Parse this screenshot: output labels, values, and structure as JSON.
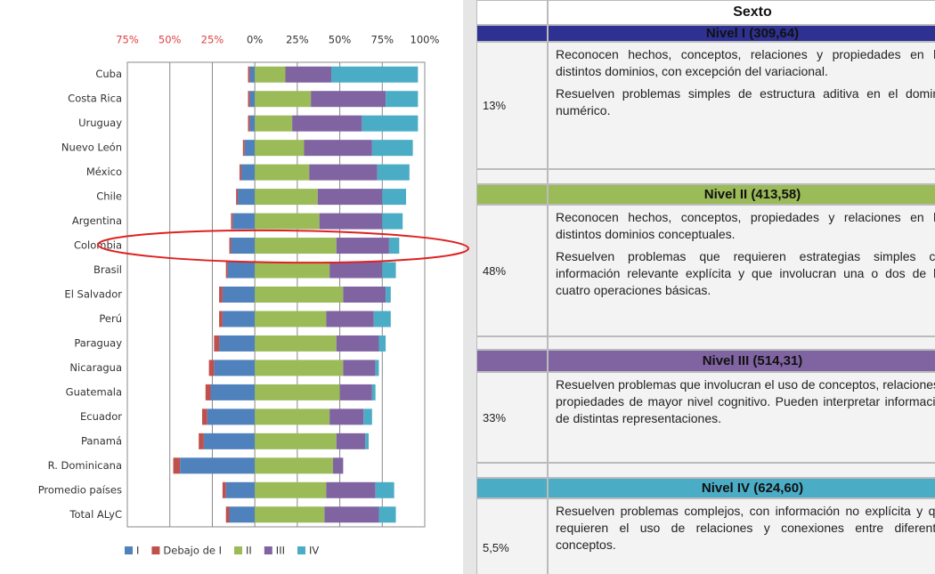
{
  "chart_data": {
    "type": "diverging_bar",
    "categories": [
      "Cuba",
      "Costa Rica",
      "Uruguay",
      "Nuevo León",
      "México",
      "Chile",
      "Argentina",
      "Colombia",
      "Brasil",
      "El Salvador",
      "Perú",
      "Paraguay",
      "Nicaragua",
      "Guatemala",
      "Ecuador",
      "Panamá",
      "R. Dominicana",
      "Promedio países",
      "Total ALyC"
    ],
    "series": [
      {
        "name": "I",
        "color": "#4f81bd",
        "values": [
          -3,
          -3,
          -3,
          -6,
          -8,
          -10,
          -13,
          -14,
          -16,
          -19,
          -19,
          -21,
          -24,
          -26,
          -28,
          -30,
          -44,
          -17,
          -15
        ]
      },
      {
        "name": "Debajo de I",
        "color": "#c0504d",
        "values": [
          -1,
          -1,
          -1,
          -1,
          -1,
          -1,
          -1,
          -1,
          -1,
          -2,
          -2,
          -3,
          -3,
          -3,
          -3,
          -3,
          -4,
          -2,
          -2
        ]
      },
      {
        "name": "II",
        "color": "#9bbb59",
        "values": [
          18,
          33,
          22,
          29,
          32,
          37,
          38,
          48,
          44,
          52,
          42,
          48,
          52,
          50,
          44,
          48,
          46,
          42,
          41
        ]
      },
      {
        "name": "III",
        "color": "#8064a2",
        "values": [
          27,
          44,
          41,
          40,
          40,
          38,
          37,
          31,
          31,
          25,
          28,
          25,
          19,
          19,
          20,
          17,
          6,
          29,
          32
        ]
      },
      {
        "name": "IV",
        "color": "#4bacc6",
        "values": [
          51,
          19,
          33,
          24,
          19,
          14,
          12,
          6,
          8,
          3,
          10,
          4,
          2,
          2,
          5,
          2,
          0,
          11,
          10
        ]
      }
    ],
    "xlim": [
      -75,
      100
    ],
    "xticks": [
      {
        "value": -75,
        "label": "75%"
      },
      {
        "value": -50,
        "label": "50%"
      },
      {
        "value": -25,
        "label": "25%"
      },
      {
        "value": 0,
        "label": "0%"
      },
      {
        "value": 25,
        "label": "25%"
      },
      {
        "value": 50,
        "label": "50%"
      },
      {
        "value": 75,
        "label": "75%"
      },
      {
        "value": 100,
        "label": "100%"
      }
    ],
    "grid": true,
    "legend": "bottom"
  },
  "table": {
    "header": "Sexto",
    "levels": [
      {
        "title": "Nivel I (309,64)",
        "color": "#2e3192",
        "percent": "13%",
        "paragraphs": [
          "Reconocen hechos, conceptos, relaciones y propiedades en los distintos dominios, con excepción del variacional.",
          "Resuelven problemas simples de estructura aditiva en el dominio numérico."
        ]
      },
      {
        "title": "Nivel II (413,58)",
        "color": "#9bbb59",
        "percent": "48%",
        "paragraphs": [
          "Reconocen hechos, conceptos, propiedades y relaciones en los distintos dominios conceptuales.",
          "Resuelven problemas que requieren estrategias simples con información relevante explícita y  que involucran una o dos de las cuatro operaciones básicas."
        ]
      },
      {
        "title": "Nivel III (514,31)",
        "color": "#8064a2",
        "percent": "33%",
        "paragraphs": [
          "Resuelven problemas que involucran el uso de conceptos, relaciones y propiedades de mayor nivel cognitivo. Pueden interpretar información de distintas representaciones."
        ]
      },
      {
        "title": "Nivel IV (624,60)",
        "color": "#4bacc6",
        "percent": "5,5%",
        "paragraphs": [
          "Resuelven problemas complejos, con información no explícita y que requieren el uso de relaciones y conexiones entre diferentes conceptos."
        ]
      }
    ]
  }
}
